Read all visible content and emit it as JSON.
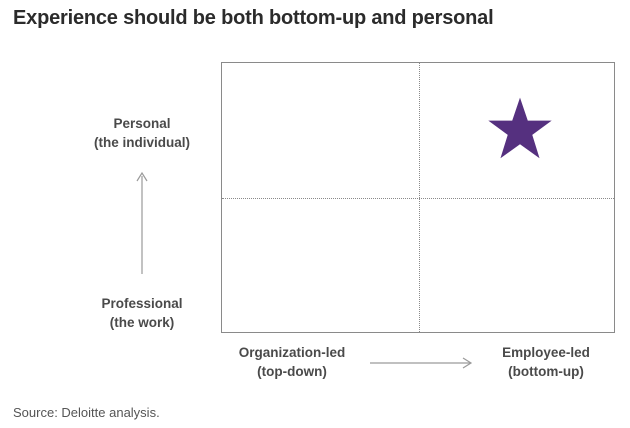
{
  "title": "Experience should be both bottom-up and personal",
  "y_axis": {
    "top_label_line1": "Personal",
    "top_label_line2": "(the individual)",
    "bottom_label_line1": "Professional",
    "bottom_label_line2": "(the work)"
  },
  "x_axis": {
    "left_label_line1": "Organization-led",
    "left_label_line2": "(top-down)",
    "right_label_line1": "Employee-led",
    "right_label_line2": "(bottom-up)"
  },
  "marker": {
    "icon": "star-icon",
    "quadrant": "top-right",
    "color": "#55307f"
  },
  "source": "Source: Deloitte analysis.",
  "colors": {
    "grid_line": "#8a8a8a",
    "arrow": "#9a9a9a",
    "star": "#55307f"
  }
}
